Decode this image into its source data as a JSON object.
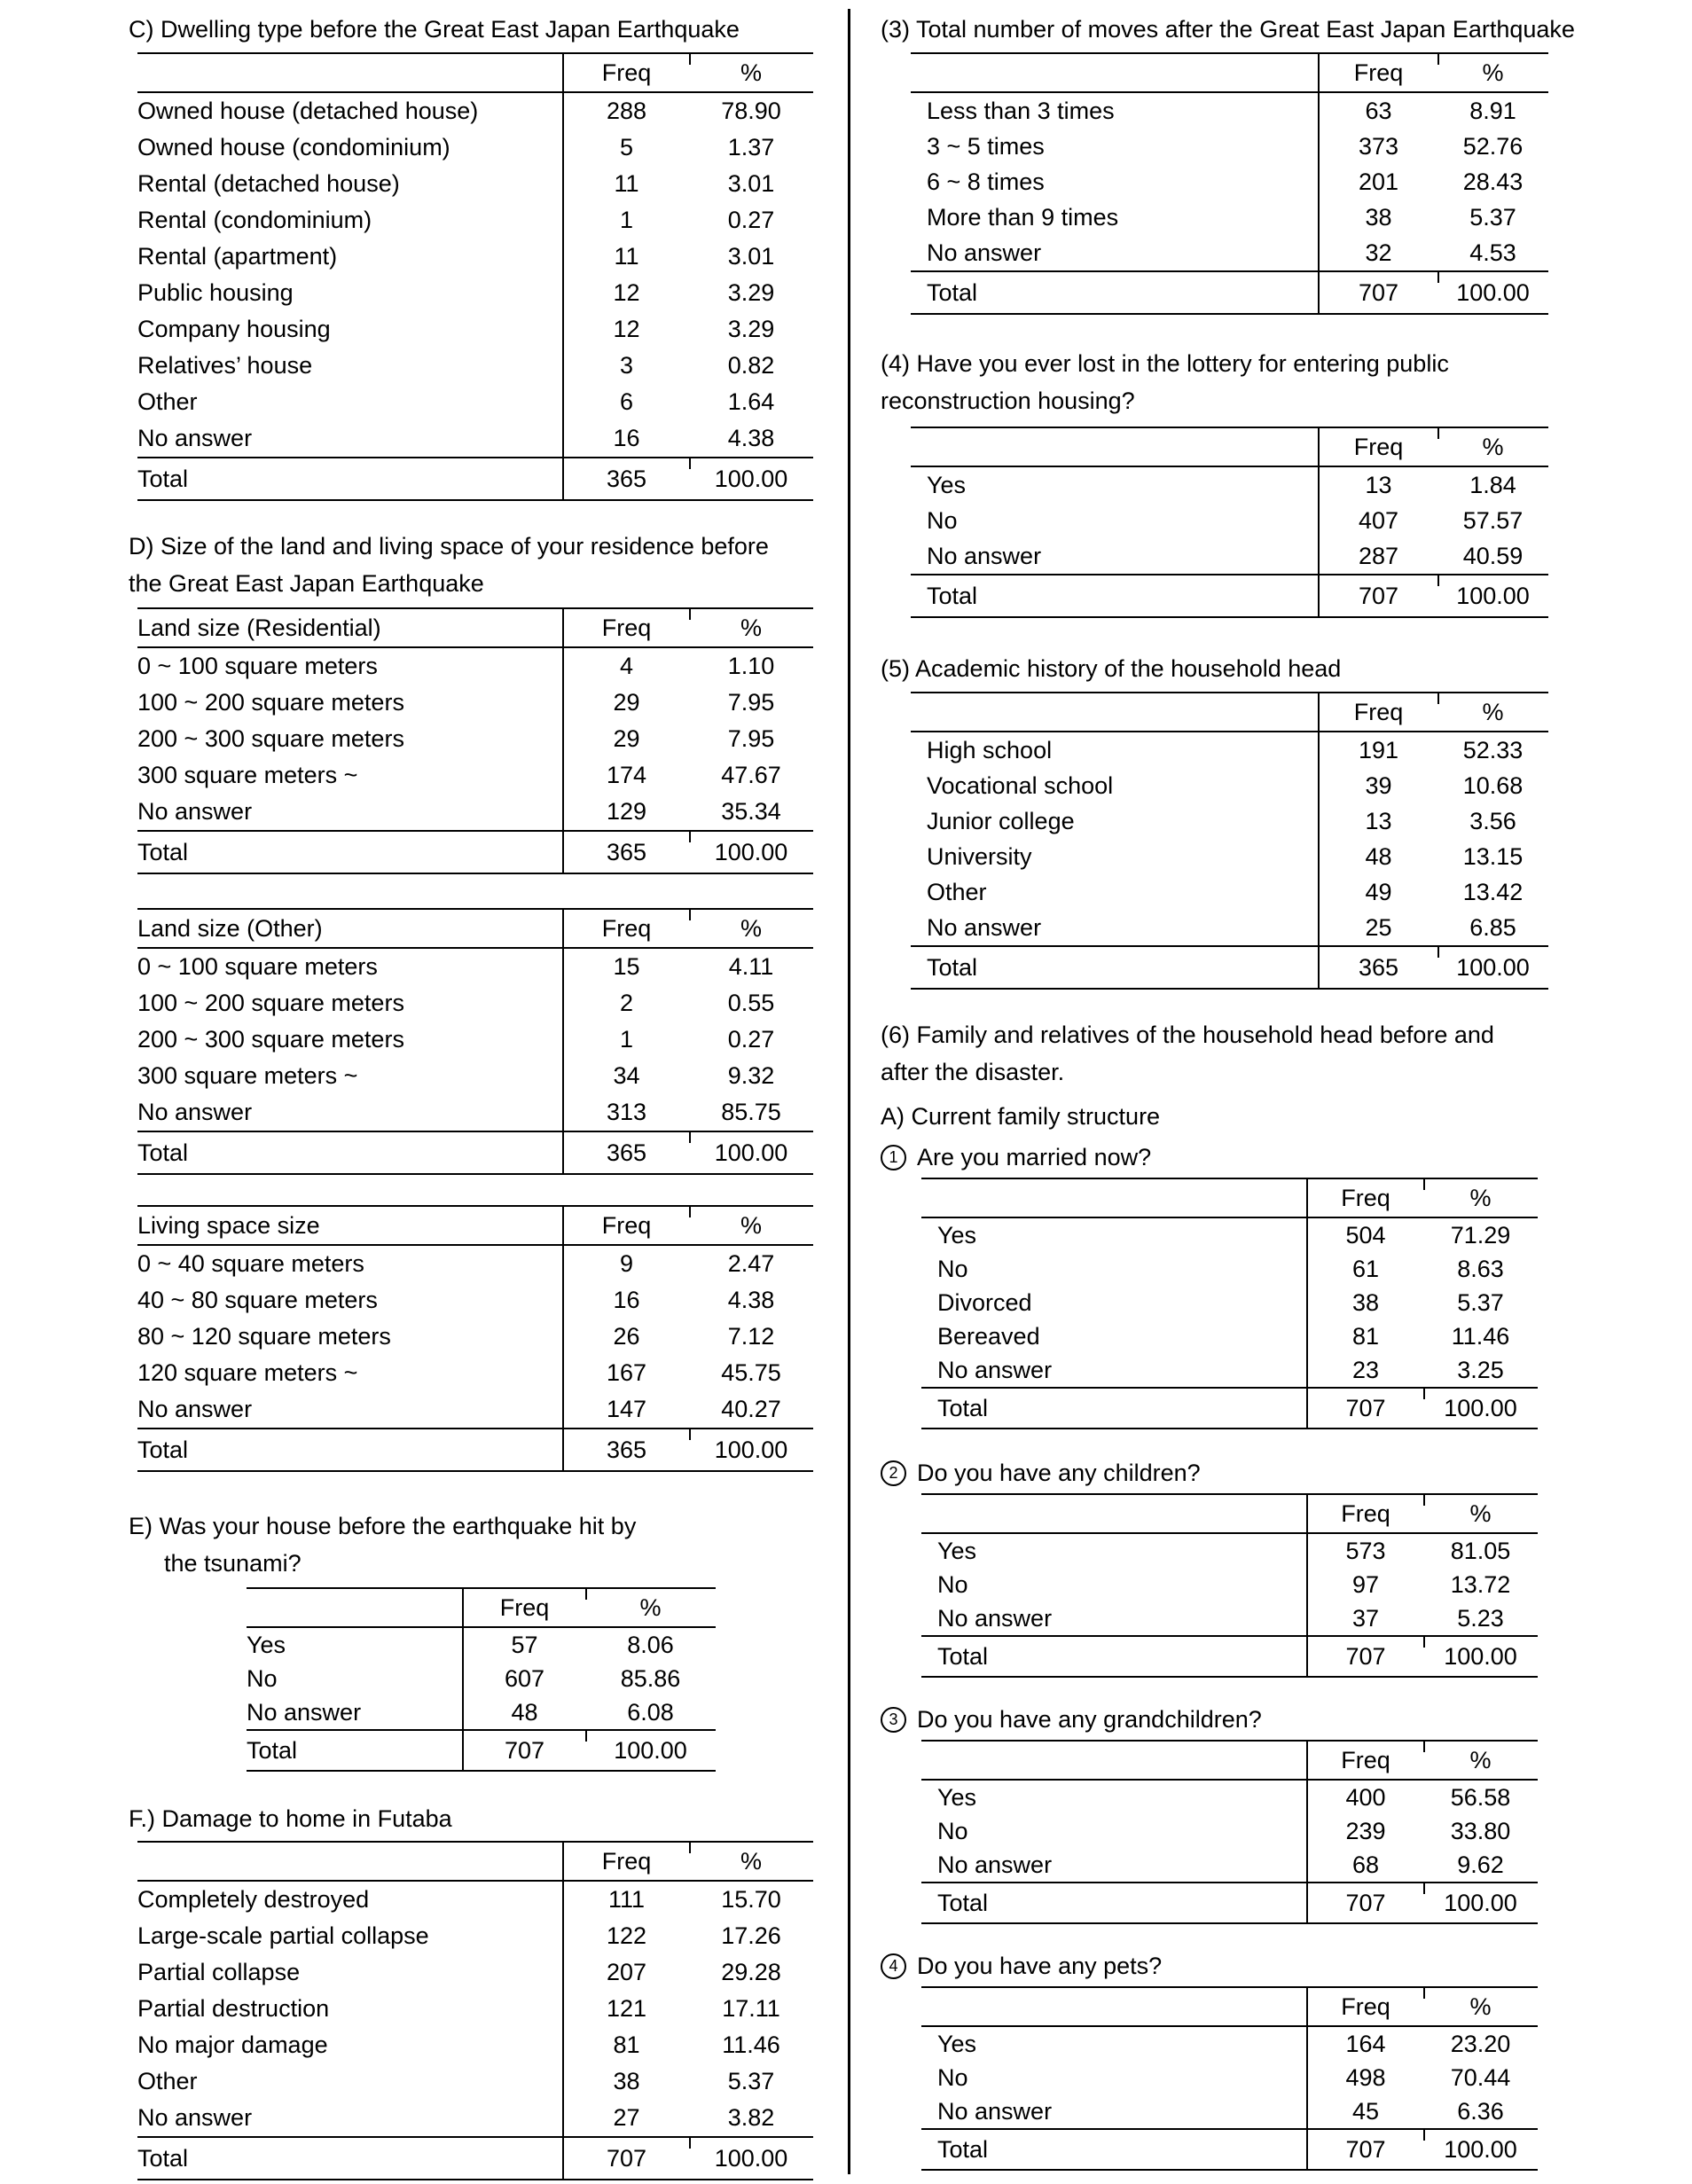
{
  "colors": {
    "text": "#000000",
    "background": "#ffffff",
    "rule": "#000000"
  },
  "page": {
    "left_blocks": [
      {
        "type": "title",
        "id": "sec-c-title",
        "lines": [
          {
            "text": "C) Dwelling type before the Great East Japan Earthquake",
            "indent": false
          }
        ]
      },
      {
        "type": "table",
        "id": "tbl-c",
        "variant": "left",
        "header_label": "",
        "col_headers": [
          "Freq",
          "%"
        ],
        "rows": [
          [
            "Owned house (detached house)",
            "288",
            "78.90"
          ],
          [
            "Owned house (condominium)",
            "5",
            "1.37"
          ],
          [
            "Rental (detached house)",
            "11",
            "3.01"
          ],
          [
            "Rental (condominium)",
            "1",
            "0.27"
          ],
          [
            "Rental (apartment)",
            "11",
            "3.01"
          ],
          [
            "Public housing",
            "12",
            "3.29"
          ],
          [
            "Company housing",
            "12",
            "3.29"
          ],
          [
            "Relatives’ house",
            "3",
            "0.82"
          ],
          [
            "Other",
            "6",
            "1.64"
          ],
          [
            "No answer",
            "16",
            "4.38"
          ]
        ],
        "total": [
          "Total",
          "365",
          "100.00"
        ]
      },
      {
        "type": "title",
        "id": "sec-d-title",
        "lines": [
          {
            "text": "D) Size of the land and living space of your residence before",
            "indent": false
          },
          {
            "text": "the Great East Japan Earthquake",
            "indent": false
          }
        ]
      },
      {
        "type": "table",
        "id": "tbl-land-res",
        "variant": "left",
        "header_label": "Land size (Residential)",
        "col_headers": [
          "Freq",
          "%"
        ],
        "rows": [
          [
            "0 ~ 100 square meters",
            "4",
            "1.10"
          ],
          [
            "100 ~ 200 square meters",
            "29",
            "7.95"
          ],
          [
            "200 ~ 300 square meters",
            "29",
            "7.95"
          ],
          [
            "300 square meters ~",
            "174",
            "47.67"
          ],
          [
            "No answer",
            "129",
            "35.34"
          ]
        ],
        "total": [
          "Total",
          "365",
          "100.00"
        ]
      },
      {
        "type": "table",
        "id": "tbl-land-other",
        "variant": "left",
        "header_label": "Land size (Other)",
        "col_headers": [
          "Freq",
          "%"
        ],
        "rows": [
          [
            "0 ~ 100 square meters",
            "15",
            "4.11"
          ],
          [
            "100 ~ 200 square meters",
            "2",
            "0.55"
          ],
          [
            "200 ~ 300 square meters",
            "1",
            "0.27"
          ],
          [
            "300 square meters ~",
            "34",
            "9.32"
          ],
          [
            "No answer",
            "313",
            "85.75"
          ]
        ],
        "total": [
          "Total",
          "365",
          "100.00"
        ]
      },
      {
        "type": "table",
        "id": "tbl-living",
        "variant": "left",
        "header_label": "Living space size",
        "col_headers": [
          "Freq",
          "%"
        ],
        "rows": [
          [
            "0 ~ 40 square meters",
            "9",
            "2.47"
          ],
          [
            "40 ~ 80 square meters",
            "16",
            "4.38"
          ],
          [
            "80 ~ 120 square meters",
            "26",
            "7.12"
          ],
          [
            "120 square meters ~",
            "167",
            "45.75"
          ],
          [
            "No answer",
            "147",
            "40.27"
          ]
        ],
        "total": [
          "Total",
          "365",
          "100.00"
        ]
      },
      {
        "type": "title",
        "id": "sec-e-title",
        "lines": [
          {
            "text": "E) Was your house before the earthquake hit by",
            "indent": false
          },
          {
            "text": "the tsunami?",
            "indent": true
          }
        ]
      },
      {
        "type": "table",
        "id": "tbl-e",
        "variant": "e",
        "header_label": "",
        "col_headers": [
          "Freq",
          "%"
        ],
        "rows": [
          [
            "Yes",
            "57",
            "8.06"
          ],
          [
            "No",
            "607",
            "85.86"
          ],
          [
            "No answer",
            "48",
            "6.08"
          ]
        ],
        "total": [
          "Total",
          "707",
          "100.00"
        ]
      },
      {
        "type": "title",
        "id": "sec-f-title",
        "lines": [
          {
            "text": "F.) Damage to home in Futaba",
            "indent": false
          }
        ]
      },
      {
        "type": "table",
        "id": "tbl-f",
        "variant": "left",
        "header_label": "",
        "col_headers": [
          "Freq",
          "%"
        ],
        "rows": [
          [
            "Completely destroyed",
            "111",
            "15.70"
          ],
          [
            "Large-scale partial collapse",
            "122",
            "17.26"
          ],
          [
            "Partial collapse",
            "207",
            "29.28"
          ],
          [
            "Partial destruction",
            "121",
            "17.11"
          ],
          [
            "No major damage",
            "81",
            "11.46"
          ],
          [
            "Other",
            "38",
            "5.37"
          ],
          [
            "No answer",
            "27",
            "3.82"
          ]
        ],
        "total": [
          "Total",
          "707",
          "100.00"
        ]
      }
    ],
    "right_blocks": [
      {
        "type": "title",
        "id": "sec-3-title",
        "lines": [
          {
            "text": "(3) Total number of moves after the Great East Japan Earthquake",
            "indent": false
          }
        ]
      },
      {
        "type": "table",
        "id": "tbl-3",
        "variant": "right",
        "header_label": "",
        "col_headers": [
          "Freq",
          "%"
        ],
        "rows": [
          [
            "Less than 3 times",
            "63",
            "8.91"
          ],
          [
            "3 ~ 5 times",
            "373",
            "52.76"
          ],
          [
            "6 ~ 8 times",
            "201",
            "28.43"
          ],
          [
            "More than 9 times",
            "38",
            "5.37"
          ],
          [
            "No answer",
            "32",
            "4.53"
          ]
        ],
        "total": [
          "Total",
          "707",
          "100.00"
        ]
      },
      {
        "type": "title",
        "id": "sec-4-title",
        "lines": [
          {
            "text": "(4) Have you ever lost in the lottery for entering public",
            "indent": false
          },
          {
            "text": "reconstruction housing?",
            "indent": false
          }
        ]
      },
      {
        "type": "table",
        "id": "tbl-4",
        "variant": "right",
        "header_label": "",
        "col_headers": [
          "Freq",
          "%"
        ],
        "rows": [
          [
            "Yes",
            "13",
            "1.84"
          ],
          [
            "No",
            "407",
            "57.57"
          ],
          [
            "No answer",
            "287",
            "40.59"
          ]
        ],
        "total": [
          "Total",
          "707",
          "100.00"
        ]
      },
      {
        "type": "title",
        "id": "sec-5-title",
        "lines": [
          {
            "text": "(5) Academic history of the household head",
            "indent": false
          }
        ]
      },
      {
        "type": "table",
        "id": "tbl-5",
        "variant": "right",
        "header_label": "",
        "col_headers": [
          "Freq",
          "%"
        ],
        "rows": [
          [
            "High school",
            "191",
            "52.33"
          ],
          [
            "Vocational school",
            "39",
            "10.68"
          ],
          [
            "Junior college",
            "13",
            "3.56"
          ],
          [
            "University",
            "48",
            "13.15"
          ],
          [
            "Other",
            "49",
            "13.42"
          ],
          [
            "No answer",
            "25",
            "6.85"
          ]
        ],
        "total": [
          "Total",
          "365",
          "100.00"
        ]
      },
      {
        "type": "title",
        "id": "sec-6-title",
        "lines": [
          {
            "text": "(6) Family and relatives of the household head before and",
            "indent": false
          },
          {
            "text": "after the disaster.",
            "indent": false
          }
        ]
      },
      {
        "type": "title",
        "id": "sec-6a",
        "lines": [
          {
            "text": "A) Current family structure",
            "indent": false
          }
        ]
      },
      {
        "type": "question",
        "id": "q-1",
        "marker": "1",
        "text": "Are you married now?"
      },
      {
        "type": "table",
        "id": "tbl-q1",
        "variant": "circ",
        "header_label": "",
        "col_headers": [
          "Freq",
          "%"
        ],
        "rows": [
          [
            "Yes",
            "504",
            "71.29"
          ],
          [
            "No",
            "61",
            "8.63"
          ],
          [
            "Divorced",
            "38",
            "5.37"
          ],
          [
            "Bereaved",
            "81",
            "11.46"
          ],
          [
            "No answer",
            "23",
            "3.25"
          ]
        ],
        "total": [
          "Total",
          "707",
          "100.00"
        ]
      },
      {
        "type": "question",
        "id": "q-2",
        "marker": "2",
        "text": "Do you have any children?"
      },
      {
        "type": "table",
        "id": "tbl-q2",
        "variant": "circ",
        "header_label": "",
        "col_headers": [
          "Freq",
          "%"
        ],
        "rows": [
          [
            "Yes",
            "573",
            "81.05"
          ],
          [
            "No",
            "97",
            "13.72"
          ],
          [
            "No answer",
            "37",
            "5.23"
          ]
        ],
        "total": [
          "Total",
          "707",
          "100.00"
        ]
      },
      {
        "type": "question",
        "id": "q-3",
        "marker": "3",
        "text": "Do you have any grandchildren?"
      },
      {
        "type": "table",
        "id": "tbl-q3",
        "variant": "circ",
        "header_label": "",
        "col_headers": [
          "Freq",
          "%"
        ],
        "rows": [
          [
            "Yes",
            "400",
            "56.58"
          ],
          [
            "No",
            "239",
            "33.80"
          ],
          [
            "No answer",
            "68",
            "9.62"
          ]
        ],
        "total": [
          "Total",
          "707",
          "100.00"
        ]
      },
      {
        "type": "question",
        "id": "q-4",
        "marker": "4",
        "text": "Do you have any pets?"
      },
      {
        "type": "table",
        "id": "tbl-q4",
        "variant": "circ",
        "header_label": "",
        "col_headers": [
          "Freq",
          "%"
        ],
        "rows": [
          [
            "Yes",
            "164",
            "23.20"
          ],
          [
            "No",
            "498",
            "70.44"
          ],
          [
            "No answer",
            "45",
            "6.36"
          ]
        ],
        "total": [
          "Total",
          "707",
          "100.00"
        ]
      }
    ]
  }
}
